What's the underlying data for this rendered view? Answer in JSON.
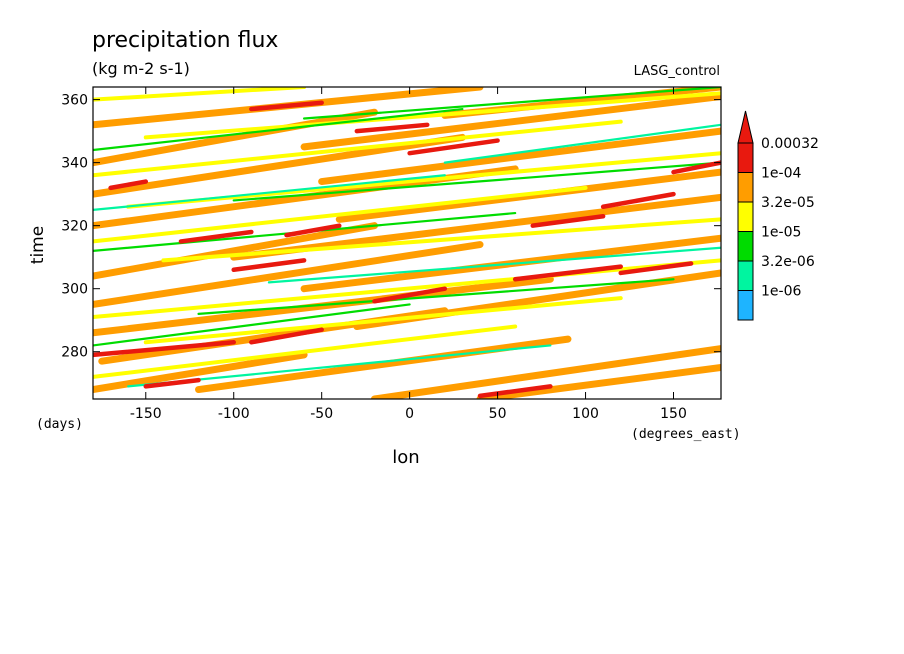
{
  "chart_data": {
    "type": "heatmap",
    "title": "precipitation flux",
    "subtitle": "(kg m-2 s-1)",
    "label_right": "LASG_control",
    "xlabel": "lon",
    "ylabel": "time",
    "x_units": "(degrees_east)",
    "y_units": "(days)",
    "xlim": [
      -180,
      177
    ],
    "ylim": [
      265,
      364
    ],
    "x_ticks": [
      -150,
      -100,
      -50,
      0,
      50,
      100,
      150
    ],
    "y_ticks": [
      280,
      300,
      320,
      340,
      360
    ],
    "x_tick_labels": [
      "-150",
      "-100",
      "-50",
      "0",
      "50",
      "100",
      "150"
    ],
    "y_tick_labels": [
      "280",
      "300",
      "320",
      "340",
      "360"
    ],
    "colorbar": {
      "levels": [
        "0.00032",
        "1e-04",
        "3.2e-05",
        "1e-05",
        "3.2e-06",
        "1e-06"
      ],
      "colors": [
        "#e8190f",
        "#ff9d00",
        "#ffff00",
        "#00dc00",
        "#00f5a0",
        "#1eb4ff"
      ],
      "triangle_color": "#e8190f"
    },
    "band_colors": {
      "heavy": "#e8190f",
      "strong": "#ff9d00",
      "moderate": "#ffff00",
      "light": "#00dc00",
      "weak": "#00f5a0"
    },
    "bands": [
      {
        "x1": -180,
        "y1": 268,
        "x2": -60,
        "y2": 279,
        "level": "strong"
      },
      {
        "x1": -175,
        "y1": 277,
        "x2": 20,
        "y2": 293,
        "level": "strong"
      },
      {
        "x1": -120,
        "y1": 268,
        "x2": 90,
        "y2": 284,
        "level": "strong"
      },
      {
        "x1": -20,
        "y1": 265,
        "x2": 177,
        "y2": 281,
        "level": "strong"
      },
      {
        "x1": 40,
        "y1": 265,
        "x2": 177,
        "y2": 275,
        "level": "strong"
      },
      {
        "x1": -180,
        "y1": 286,
        "x2": 80,
        "y2": 303,
        "level": "strong"
      },
      {
        "x1": -30,
        "y1": 288,
        "x2": 177,
        "y2": 305,
        "level": "strong"
      },
      {
        "x1": -180,
        "y1": 295,
        "x2": 40,
        "y2": 314,
        "level": "strong"
      },
      {
        "x1": -60,
        "y1": 300,
        "x2": 177,
        "y2": 316,
        "level": "strong"
      },
      {
        "x1": -180,
        "y1": 304,
        "x2": -20,
        "y2": 320,
        "level": "strong"
      },
      {
        "x1": -100,
        "y1": 310,
        "x2": 177,
        "y2": 329,
        "level": "strong"
      },
      {
        "x1": -180,
        "y1": 320,
        "x2": 60,
        "y2": 338,
        "level": "strong"
      },
      {
        "x1": -40,
        "y1": 322,
        "x2": 177,
        "y2": 337,
        "level": "strong"
      },
      {
        "x1": -180,
        "y1": 330,
        "x2": 30,
        "y2": 348,
        "level": "strong"
      },
      {
        "x1": -50,
        "y1": 334,
        "x2": 177,
        "y2": 350,
        "level": "strong"
      },
      {
        "x1": -180,
        "y1": 340,
        "x2": -20,
        "y2": 356,
        "level": "strong"
      },
      {
        "x1": -60,
        "y1": 345,
        "x2": 177,
        "y2": 361,
        "level": "strong"
      },
      {
        "x1": -180,
        "y1": 352,
        "x2": 40,
        "y2": 364,
        "level": "strong"
      },
      {
        "x1": 20,
        "y1": 355,
        "x2": 177,
        "y2": 364,
        "level": "strong"
      },
      {
        "x1": -180,
        "y1": 272,
        "x2": 60,
        "y2": 288,
        "level": "moderate"
      },
      {
        "x1": -150,
        "y1": 283,
        "x2": 120,
        "y2": 297,
        "level": "moderate"
      },
      {
        "x1": -180,
        "y1": 291,
        "x2": 177,
        "y2": 309,
        "level": "moderate"
      },
      {
        "x1": -140,
        "y1": 309,
        "x2": 177,
        "y2": 322,
        "level": "moderate"
      },
      {
        "x1": -180,
        "y1": 315,
        "x2": 100,
        "y2": 332,
        "level": "moderate"
      },
      {
        "x1": -160,
        "y1": 326,
        "x2": 177,
        "y2": 343,
        "level": "moderate"
      },
      {
        "x1": -180,
        "y1": 336,
        "x2": 120,
        "y2": 353,
        "level": "moderate"
      },
      {
        "x1": -150,
        "y1": 348,
        "x2": 177,
        "y2": 362,
        "level": "moderate"
      },
      {
        "x1": -180,
        "y1": 360,
        "x2": -60,
        "y2": 364,
        "level": "moderate"
      },
      {
        "x1": -180,
        "y1": 282,
        "x2": 0,
        "y2": 295,
        "level": "light"
      },
      {
        "x1": -120,
        "y1": 292,
        "x2": 150,
        "y2": 303,
        "level": "light"
      },
      {
        "x1": -180,
        "y1": 312,
        "x2": 60,
        "y2": 324,
        "level": "light"
      },
      {
        "x1": -100,
        "y1": 328,
        "x2": 177,
        "y2": 340,
        "level": "light"
      },
      {
        "x1": -180,
        "y1": 344,
        "x2": 30,
        "y2": 357,
        "level": "light"
      },
      {
        "x1": -60,
        "y1": 354,
        "x2": 177,
        "y2": 364,
        "level": "light"
      },
      {
        "x1": -160,
        "y1": 269,
        "x2": 80,
        "y2": 282,
        "level": "weak"
      },
      {
        "x1": -80,
        "y1": 302,
        "x2": 177,
        "y2": 313,
        "level": "weak"
      },
      {
        "x1": -180,
        "y1": 325,
        "x2": 20,
        "y2": 336,
        "level": "weak"
      },
      {
        "x1": 20,
        "y1": 340,
        "x2": 177,
        "y2": 352,
        "level": "weak"
      },
      {
        "x1": -180,
        "y1": 279,
        "x2": -100,
        "y2": 283,
        "level": "heavy"
      },
      {
        "x1": -90,
        "y1": 283,
        "x2": -50,
        "y2": 287,
        "level": "heavy"
      },
      {
        "x1": -150,
        "y1": 269,
        "x2": -120,
        "y2": 271,
        "level": "heavy"
      },
      {
        "x1": 40,
        "y1": 266,
        "x2": 80,
        "y2": 269,
        "level": "heavy"
      },
      {
        "x1": -20,
        "y1": 296,
        "x2": 20,
        "y2": 300,
        "level": "heavy"
      },
      {
        "x1": 60,
        "y1": 303,
        "x2": 120,
        "y2": 307,
        "level": "heavy"
      },
      {
        "x1": 120,
        "y1": 305,
        "x2": 160,
        "y2": 308,
        "level": "heavy"
      },
      {
        "x1": -100,
        "y1": 306,
        "x2": -60,
        "y2": 309,
        "level": "heavy"
      },
      {
        "x1": -130,
        "y1": 315,
        "x2": -90,
        "y2": 318,
        "level": "heavy"
      },
      {
        "x1": -70,
        "y1": 317,
        "x2": -40,
        "y2": 320,
        "level": "heavy"
      },
      {
        "x1": 70,
        "y1": 320,
        "x2": 110,
        "y2": 323,
        "level": "heavy"
      },
      {
        "x1": 110,
        "y1": 326,
        "x2": 150,
        "y2": 330,
        "level": "heavy"
      },
      {
        "x1": -170,
        "y1": 332,
        "x2": -150,
        "y2": 334,
        "level": "heavy"
      },
      {
        "x1": 0,
        "y1": 343,
        "x2": 50,
        "y2": 347,
        "level": "heavy"
      },
      {
        "x1": -30,
        "y1": 350,
        "x2": 10,
        "y2": 352,
        "level": "heavy"
      },
      {
        "x1": -90,
        "y1": 357,
        "x2": -50,
        "y2": 359,
        "level": "heavy"
      },
      {
        "x1": 150,
        "y1": 337,
        "x2": 177,
        "y2": 340,
        "level": "heavy"
      }
    ]
  }
}
